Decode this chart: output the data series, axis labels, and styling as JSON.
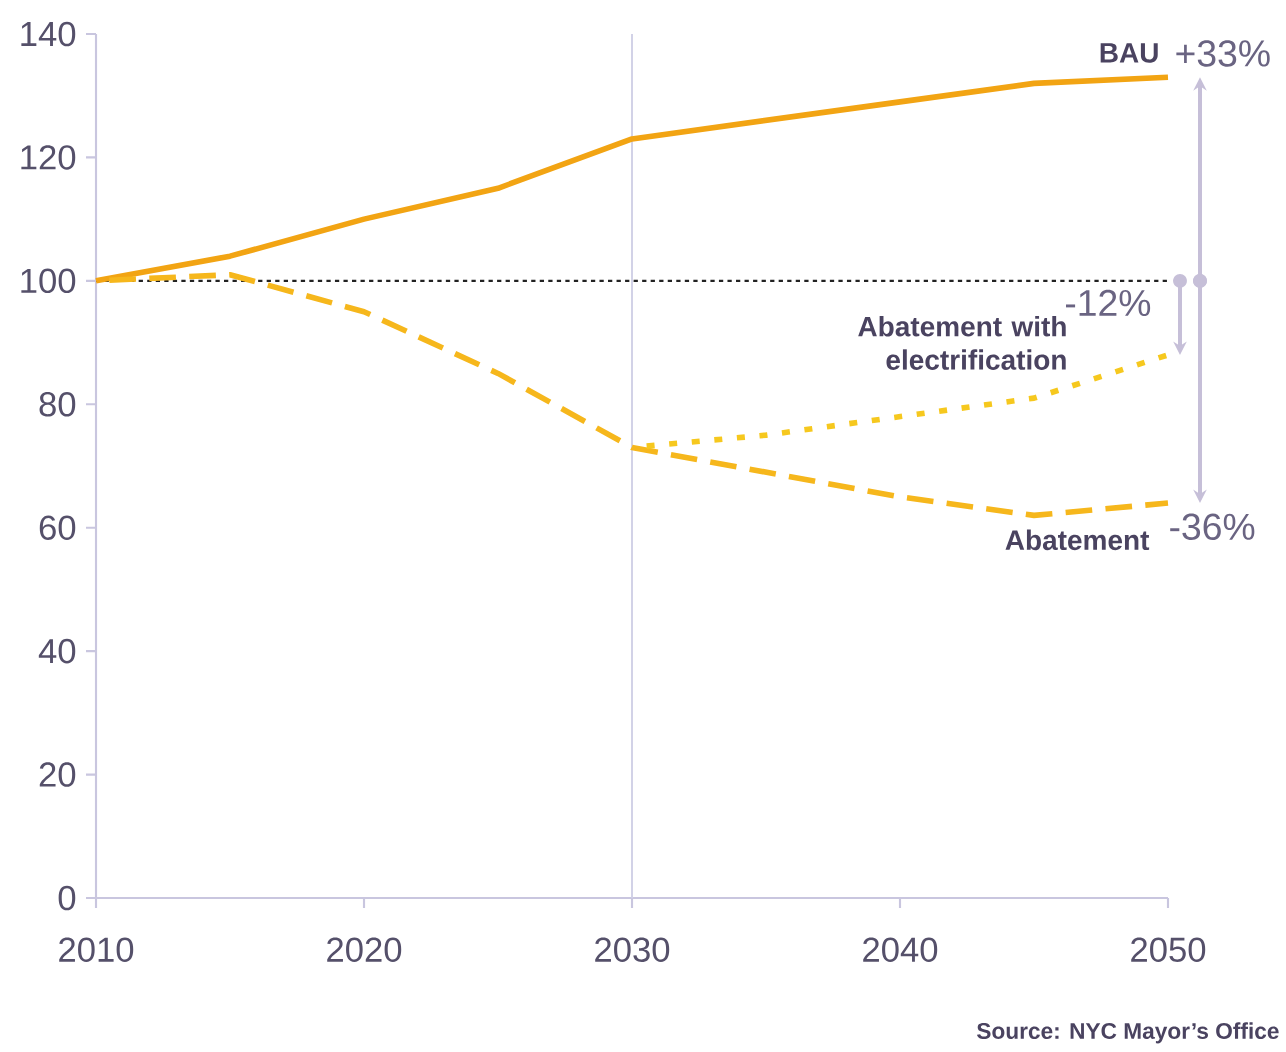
{
  "chart_data": {
    "type": "line",
    "x": [
      2010,
      2015,
      2020,
      2025,
      2030,
      2035,
      2040,
      2045,
      2050
    ],
    "series": [
      {
        "name": "BAU",
        "color": "#f2a413",
        "line_style": "solid",
        "values": [
          100,
          104,
          110,
          115,
          123,
          126,
          129,
          132,
          133
        ]
      },
      {
        "name": "Abatement",
        "color": "#f6b71c",
        "line_style": "dashed",
        "values": [
          100,
          101,
          95,
          85,
          73,
          69,
          65,
          62,
          64
        ]
      },
      {
        "name": "Abatement with electrification",
        "color": "#f6c81e",
        "line_style": "dotted",
        "x": [
          2030,
          2035,
          2040,
          2045,
          2050
        ],
        "values": [
          73,
          75,
          78,
          81,
          88
        ]
      }
    ],
    "xlim": [
      2010,
      2050
    ],
    "ylim": [
      0,
      140
    ],
    "xticks": [
      2010,
      2020,
      2030,
      2040,
      2050
    ],
    "yticks": [
      0,
      20,
      40,
      60,
      80,
      100,
      120,
      140
    ],
    "marker": "none",
    "ref_lines": [
      {
        "axis": "y",
        "value": 100,
        "color": "#222222",
        "line_style": "dotted"
      },
      {
        "axis": "x",
        "value": 2030,
        "color": "#cfcfe6",
        "line_style": "solid"
      }
    ],
    "annotations": [
      "+33%",
      "-12%",
      "-36%",
      "Source: NYC Mayor’s Office"
    ]
  }
}
